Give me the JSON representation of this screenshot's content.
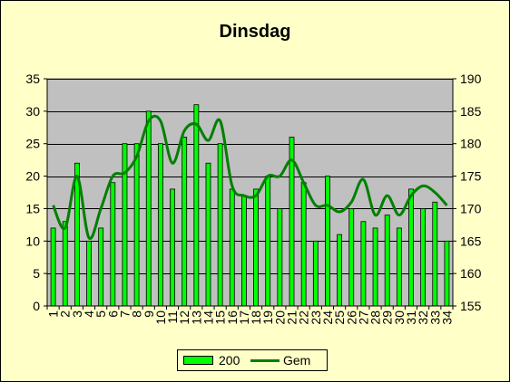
{
  "chart_data": {
    "type": "bar",
    "title": "Dinsdag",
    "categories": [
      "1",
      "2",
      "3",
      "4",
      "5",
      "6",
      "7",
      "8",
      "9",
      "10",
      "11",
      "12",
      "13",
      "14",
      "15",
      "16",
      "17",
      "18",
      "19",
      "20",
      "21",
      "22",
      "23",
      "24",
      "25",
      "26",
      "27",
      "28",
      "29",
      "30",
      "31",
      "32",
      "33",
      "34"
    ],
    "y_left": {
      "min": 0,
      "max": 35,
      "ticks": [
        0,
        5,
        10,
        15,
        20,
        25,
        30,
        35
      ]
    },
    "y_right": {
      "min": 155,
      "max": 190,
      "ticks": [
        155,
        160,
        165,
        170,
        175,
        180,
        185,
        190
      ]
    },
    "grid": true,
    "legend_position": "bottom",
    "series": [
      {
        "name": "200",
        "type": "bar",
        "axis": "left",
        "color": "#00ff00",
        "values": [
          12,
          13,
          22,
          10,
          12,
          19,
          25,
          25,
          30,
          25,
          18,
          26,
          31,
          22,
          25,
          18,
          17,
          18,
          20,
          15,
          26,
          19,
          10,
          20,
          11,
          15,
          13,
          12,
          14,
          12,
          18,
          15,
          16,
          10
        ]
      },
      {
        "name": "Gem",
        "type": "line",
        "axis": "right",
        "color": "#008000",
        "smooth": true,
        "values": [
          170.5,
          167,
          175,
          165.5,
          170,
          175,
          175.5,
          178,
          183.5,
          183.5,
          177,
          182,
          183,
          180.5,
          183.5,
          173.5,
          172,
          172,
          175,
          175,
          177.5,
          174,
          170.5,
          170.5,
          169.5,
          171,
          174.5,
          169,
          172,
          169,
          172,
          173.5,
          172.5,
          170.5
        ]
      }
    ]
  }
}
